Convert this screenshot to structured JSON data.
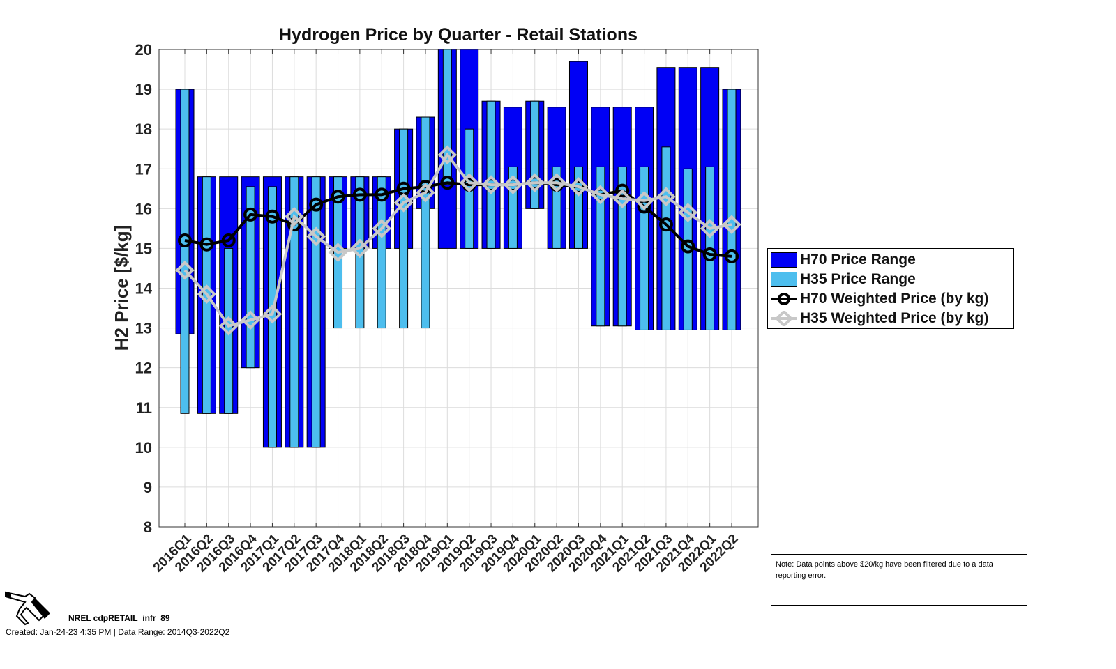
{
  "chart_data": {
    "type": "bar",
    "title": "Hydrogen Price by Quarter - Retail Stations",
    "xlabel": "",
    "ylabel": "H2 Price [$/kg]",
    "ylim": [
      8,
      20
    ],
    "yticks": [
      8,
      9,
      10,
      11,
      12,
      13,
      14,
      15,
      16,
      17,
      18,
      19,
      20
    ],
    "grid": true,
    "legend_position": "right",
    "categories": [
      "2016Q1",
      "2016Q2",
      "2016Q3",
      "2016Q4",
      "2017Q1",
      "2017Q2",
      "2017Q3",
      "2017Q4",
      "2018Q1",
      "2018Q2",
      "2018Q3",
      "2018Q4",
      "2019Q1",
      "2019Q2",
      "2019Q3",
      "2019Q4",
      "2020Q1",
      "2020Q2",
      "2020Q3",
      "2020Q4",
      "2021Q1",
      "2021Q2",
      "2021Q3",
      "2021Q4",
      "2022Q1",
      "2022Q2"
    ],
    "series": [
      {
        "name": "H70 Price Range",
        "type": "range-bar",
        "color": "#0000f5",
        "min": [
          12.85,
          10.85,
          10.85,
          12,
          10,
          10,
          10,
          15,
          15,
          15,
          15,
          16,
          15,
          15,
          15,
          15,
          16,
          15,
          15,
          13.05,
          13.05,
          12.95,
          12.95,
          12.95,
          12.95,
          12.95
        ],
        "max": [
          19,
          16.8,
          16.8,
          16.8,
          16.8,
          16.8,
          16.8,
          16.8,
          16.8,
          16.8,
          18,
          18.3,
          20,
          20,
          18.7,
          18.55,
          18.7,
          18.55,
          19.7,
          18.55,
          18.55,
          18.55,
          19.55,
          19.55,
          19.55,
          19
        ]
      },
      {
        "name": "H35 Price Range",
        "type": "range-bar",
        "color": "#4dbeee",
        "min": [
          10.85,
          10.85,
          10.85,
          12,
          10,
          10,
          10,
          13,
          13,
          13,
          13,
          13,
          16.6,
          15,
          15,
          15,
          16,
          15,
          15,
          13.05,
          13.05,
          12.95,
          12.95,
          12.95,
          12.95,
          12.95
        ],
        "max": [
          19,
          16.8,
          15,
          16.55,
          16.55,
          16.8,
          16.8,
          16.8,
          16.8,
          16.8,
          18,
          18.3,
          20,
          18,
          18.7,
          17.05,
          18.7,
          17.05,
          17.05,
          17.05,
          17.05,
          17.05,
          17.55,
          17,
          17.05,
          19
        ]
      },
      {
        "name": "H70 Weighted Price (by kg)",
        "type": "line",
        "color": "#000000",
        "marker": "circle",
        "values": [
          15.2,
          15.1,
          15.2,
          15.85,
          15.8,
          15.6,
          16.1,
          16.3,
          16.35,
          16.35,
          16.5,
          16.55,
          16.65,
          16.6,
          16.6,
          16.6,
          16.65,
          16.6,
          16.55,
          16.35,
          16.45,
          16.05,
          15.6,
          15.05,
          14.85,
          14.8
        ]
      },
      {
        "name": "H35 Weighted Price (by kg)",
        "type": "line",
        "color": "#c8c8c8",
        "marker": "diamond",
        "values": [
          14.45,
          13.85,
          13.05,
          13.2,
          13.35,
          15.8,
          15.3,
          14.9,
          15.0,
          15.5,
          16.15,
          16.4,
          17.35,
          16.65,
          16.6,
          16.6,
          16.65,
          16.65,
          16.55,
          16.35,
          16.25,
          16.2,
          16.3,
          15.9,
          15.5,
          15.6
        ]
      }
    ]
  },
  "note": "Note: Data points above $20/kg have been filtered due to a data reporting error.",
  "footer": {
    "id": "NREL cdpRETAIL_infr_89",
    "created": "Created: Jan-24-23  4:35 PM | Data Range: 2014Q3-2022Q2"
  }
}
